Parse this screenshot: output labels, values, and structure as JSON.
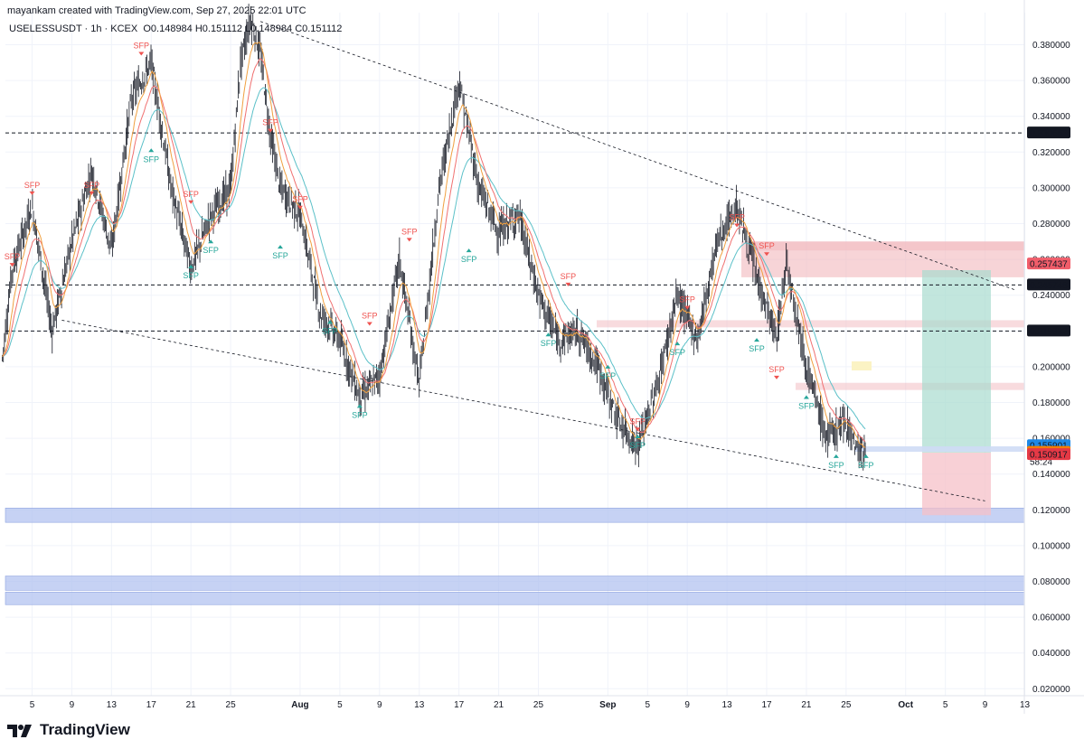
{
  "header": {
    "credit": "mayankam created with TradingView.com, Sep 27, 2025 22:01 UTC",
    "symbol": "USELESSUSDT · 1h · KCEX",
    "open": "O0.148984",
    "high": "H0.151112",
    "low": "L0.148984",
    "close": "C0.151112"
  },
  "branding": {
    "name": "TradingView",
    "icon": "tradingview-logo-icon"
  },
  "colors": {
    "up": "#26a69a",
    "down": "#ef5350",
    "candle": "#131722",
    "ma_fast": "#f0a040",
    "ma_slow": "#f07070",
    "ma_teal": "#5bc0c8",
    "zone_blue": "#b3c3f0",
    "zone_red": "#f2b8bd",
    "profit": "#a8dccf",
    "loss": "#f5c0c8"
  },
  "chart_data": {
    "type": "line",
    "symbol": "USELESSUSDT",
    "interval": "1h",
    "exchange": "KCEX",
    "ylim": [
      0.01,
      0.395
    ],
    "y_ticks": [
      "0.380000",
      "0.360000",
      "0.340000",
      "0.320000",
      "0.300000",
      "0.280000",
      "0.260000",
      "0.240000",
      "0.220000",
      "0.200000",
      "0.180000",
      "0.160000",
      "0.140000",
      "0.120000",
      "0.100000",
      "0.080000",
      "0.060000",
      "0.040000",
      "0.020000"
    ],
    "x_ticks": [
      "5",
      "9",
      "13",
      "17",
      "21",
      "25",
      "Aug",
      "5",
      "9",
      "13",
      "17",
      "21",
      "25",
      "Sep",
      "5",
      "9",
      "13",
      "17",
      "21",
      "25",
      "Oct",
      "5",
      "9",
      "13"
    ],
    "price_path": [
      [
        "Jul 2",
        0.205
      ],
      [
        "Jul 3",
        0.255
      ],
      [
        "Jul 5",
        0.29
      ],
      [
        "Jul 7",
        0.22
      ],
      [
        "Jul 9",
        0.27
      ],
      [
        "Jul 11",
        0.31
      ],
      [
        "Jul 13",
        0.265
      ],
      [
        "Jul 15",
        0.35
      ],
      [
        "Jul 17",
        0.37
      ],
      [
        "Jul 19",
        0.3
      ],
      [
        "Jul 21",
        0.255
      ],
      [
        "Jul 23",
        0.285
      ],
      [
        "Jul 25",
        0.3
      ],
      [
        "Jul 26",
        0.37
      ],
      [
        "Jul 27",
        0.395
      ],
      [
        "Jul 28",
        0.375
      ],
      [
        "Jul 29",
        0.33
      ],
      [
        "Jul 30",
        0.3
      ],
      [
        "Aug 1",
        0.285
      ],
      [
        "Aug 3",
        0.23
      ],
      [
        "Aug 5",
        0.215
      ],
      [
        "Aug 7",
        0.183
      ],
      [
        "Aug 9",
        0.195
      ],
      [
        "Aug 11",
        0.26
      ],
      [
        "Aug 13",
        0.19
      ],
      [
        "Aug 15",
        0.3
      ],
      [
        "Aug 17",
        0.36
      ],
      [
        "Aug 19",
        0.3
      ],
      [
        "Aug 21",
        0.275
      ],
      [
        "Aug 23",
        0.285
      ],
      [
        "Aug 25",
        0.24
      ],
      [
        "Aug 27",
        0.215
      ],
      [
        "Aug 29",
        0.22
      ],
      [
        "Aug 31",
        0.2
      ],
      [
        "Sep 2",
        0.17
      ],
      [
        "Sep 4",
        0.155
      ],
      [
        "Sep 6",
        0.19
      ],
      [
        "Sep 8",
        0.24
      ],
      [
        "Sep 10",
        0.215
      ],
      [
        "Sep 12",
        0.27
      ],
      [
        "Sep 14",
        0.29
      ],
      [
        "Sep 16",
        0.25
      ],
      [
        "Sep 18",
        0.215
      ],
      [
        "Sep 19",
        0.26
      ],
      [
        "Sep 21",
        0.2
      ],
      [
        "Sep 23",
        0.16
      ],
      [
        "Sep 25",
        0.17
      ],
      [
        "Sep 26",
        0.155
      ],
      [
        "Sep 27",
        0.151
      ]
    ],
    "horizontal_levels": [
      {
        "label": "0.330663",
        "value": 0.330663,
        "style": "dashed"
      },
      {
        "label": "0.245748",
        "value": 0.245748,
        "style": "dashed"
      },
      {
        "label": "0.219932",
        "value": 0.219932,
        "style": "dashed"
      }
    ],
    "price_labels": [
      {
        "label": "0.257437",
        "value": 0.257437,
        "color": "#f05d6a"
      },
      {
        "label": "0.155901",
        "value": 0.155901,
        "color": "#1e88e5"
      },
      {
        "label": "0.152153",
        "value": 0.152153,
        "color": "#f57c00"
      },
      {
        "label": "0.151112",
        "value": 0.151112,
        "color": "none"
      },
      {
        "label": "58:24",
        "value": 0.1468,
        "color": "none"
      },
      {
        "label": "0.150917",
        "value": 0.150917,
        "color": "#e53945"
      }
    ],
    "zones": [
      {
        "kind": "demand",
        "from": 0.113,
        "to": 0.121
      },
      {
        "kind": "demand",
        "from": 0.075,
        "to": 0.083
      },
      {
        "kind": "demand",
        "from": 0.067,
        "to": 0.074
      },
      {
        "kind": "supply",
        "from": 0.25,
        "to": 0.27
      }
    ],
    "trendlines": [
      {
        "from": [
          "Jul 28",
          0.393
        ],
        "to": [
          "Oct 12",
          0.243
        ]
      },
      {
        "from": [
          "Jul 8",
          0.226
        ],
        "to": [
          "Oct 9",
          0.125
        ]
      }
    ],
    "position": {
      "entry": 0.152,
      "target": 0.254,
      "stop": 0.117
    },
    "signal_label": "SFP"
  }
}
